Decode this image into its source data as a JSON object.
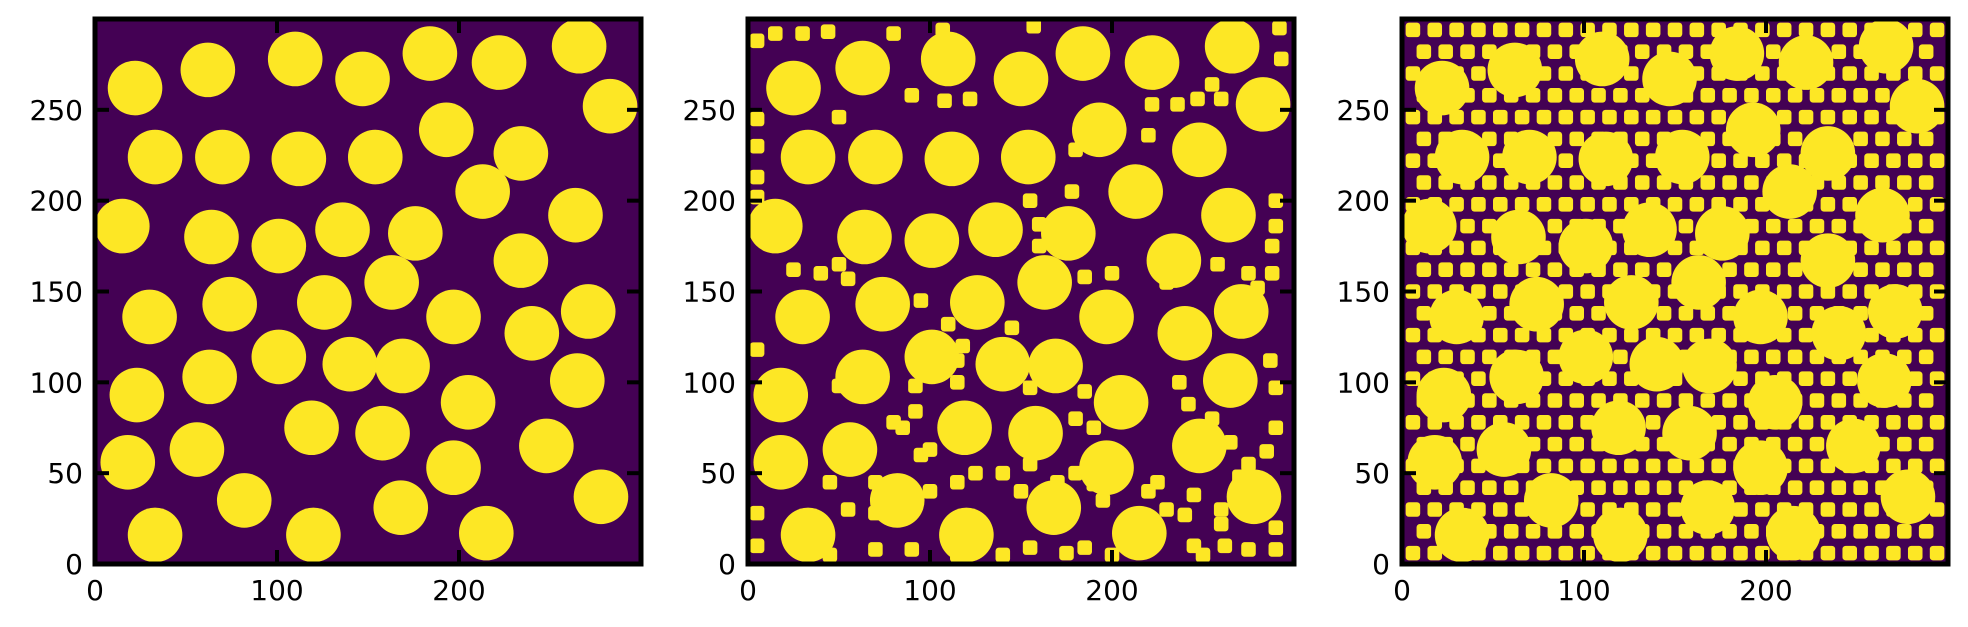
{
  "colors": {
    "background": "#440154",
    "particle": "#fde725",
    "frame": "#000000"
  },
  "chart_data": [
    {
      "type": "heatmap",
      "title": "",
      "xlabel": "",
      "ylabel": "",
      "xlim": [
        0,
        300
      ],
      "ylim": [
        0,
        300
      ],
      "xticks": [
        "0",
        "100",
        "200"
      ],
      "yticks": [
        "0",
        "50",
        "100",
        "150",
        "200",
        "250"
      ],
      "grid": false,
      "large_particles": [
        [
          22,
          262
        ],
        [
          62,
          272
        ],
        [
          110,
          278
        ],
        [
          147,
          267
        ],
        [
          184,
          281
        ],
        [
          222,
          276
        ],
        [
          266,
          285
        ],
        [
          283,
          252
        ],
        [
          33,
          224
        ],
        [
          70,
          224
        ],
        [
          112,
          223
        ],
        [
          154,
          224
        ],
        [
          193,
          239
        ],
        [
          234,
          226
        ],
        [
          15,
          186
        ],
        [
          64,
          180
        ],
        [
          101,
          175
        ],
        [
          136,
          184
        ],
        [
          176,
          182
        ],
        [
          213,
          205
        ],
        [
          264,
          192
        ],
        [
          234,
          167
        ],
        [
          30,
          136
        ],
        [
          74,
          143
        ],
        [
          126,
          144
        ],
        [
          163,
          155
        ],
        [
          197,
          136
        ],
        [
          240,
          127
        ],
        [
          271,
          139
        ],
        [
          23,
          93
        ],
        [
          63,
          103
        ],
        [
          101,
          114
        ],
        [
          140,
          110
        ],
        [
          169,
          109
        ],
        [
          205,
          89
        ],
        [
          265,
          101
        ],
        [
          119,
          75
        ],
        [
          158,
          72
        ],
        [
          197,
          53
        ],
        [
          248,
          65
        ],
        [
          18,
          56
        ],
        [
          56,
          63
        ],
        [
          82,
          35
        ],
        [
          33,
          16
        ],
        [
          120,
          16
        ],
        [
          168,
          31
        ],
        [
          215,
          17
        ],
        [
          278,
          37
        ]
      ],
      "large_radius": 15
    },
    {
      "type": "heatmap",
      "title": "",
      "xlabel": "",
      "ylabel": "",
      "xlim": [
        0,
        300
      ],
      "ylim": [
        0,
        300
      ],
      "xticks": [
        "0",
        "100",
        "200"
      ],
      "yticks": [
        "0",
        "50",
        "100",
        "150",
        "200",
        "250"
      ],
      "grid": false,
      "large_particles": [
        [
          25,
          262
        ],
        [
          63,
          273
        ],
        [
          110,
          278
        ],
        [
          150,
          267
        ],
        [
          184,
          281
        ],
        [
          222,
          276
        ],
        [
          266,
          285
        ],
        [
          283,
          253
        ],
        [
          33,
          224
        ],
        [
          70,
          224
        ],
        [
          112,
          223
        ],
        [
          154,
          224
        ],
        [
          193,
          239
        ],
        [
          248,
          228
        ],
        [
          15,
          186
        ],
        [
          64,
          180
        ],
        [
          101,
          178
        ],
        [
          136,
          184
        ],
        [
          176,
          182
        ],
        [
          213,
          205
        ],
        [
          264,
          192
        ],
        [
          234,
          167
        ],
        [
          30,
          136
        ],
        [
          74,
          143
        ],
        [
          126,
          144
        ],
        [
          163,
          155
        ],
        [
          197,
          136
        ],
        [
          240,
          127
        ],
        [
          271,
          139
        ],
        [
          18,
          93
        ],
        [
          63,
          103
        ],
        [
          101,
          114
        ],
        [
          140,
          110
        ],
        [
          169,
          109
        ],
        [
          205,
          89
        ],
        [
          265,
          101
        ],
        [
          119,
          75
        ],
        [
          158,
          72
        ],
        [
          197,
          53
        ],
        [
          248,
          65
        ],
        [
          18,
          56
        ],
        [
          56,
          63
        ],
        [
          82,
          35
        ],
        [
          33,
          16
        ],
        [
          120,
          16
        ],
        [
          168,
          31
        ],
        [
          215,
          17
        ],
        [
          278,
          37
        ]
      ],
      "large_radius": 15,
      "small_particles": [
        [
          5,
          288
        ],
        [
          15,
          292
        ],
        [
          30,
          292
        ],
        [
          44,
          293
        ],
        [
          80,
          292
        ],
        [
          107,
          294
        ],
        [
          157,
          296
        ],
        [
          292,
          295
        ],
        [
          293,
          278
        ],
        [
          90,
          258
        ],
        [
          108,
          255
        ],
        [
          122,
          256
        ],
        [
          50,
          246
        ],
        [
          5,
          245
        ],
        [
          5,
          230
        ],
        [
          222,
          253
        ],
        [
          236,
          253
        ],
        [
          247,
          256
        ],
        [
          260,
          256
        ],
        [
          255,
          264
        ],
        [
          180,
          228
        ],
        [
          220,
          236
        ],
        [
          5,
          213
        ],
        [
          5,
          202
        ],
        [
          155,
          200
        ],
        [
          160,
          187
        ],
        [
          178,
          205
        ],
        [
          290,
          200
        ],
        [
          290,
          186
        ],
        [
          288,
          175
        ],
        [
          288,
          160
        ],
        [
          280,
          152
        ],
        [
          258,
          165
        ],
        [
          275,
          160
        ],
        [
          40,
          160
        ],
        [
          25,
          162
        ],
        [
          50,
          165
        ],
        [
          55,
          157
        ],
        [
          230,
          155
        ],
        [
          185,
          158
        ],
        [
          160,
          175
        ],
        [
          200,
          160
        ],
        [
          95,
          145
        ],
        [
          110,
          132
        ],
        [
          145,
          130
        ],
        [
          118,
          120
        ],
        [
          5,
          118
        ],
        [
          115,
          112
        ],
        [
          142,
          118
        ],
        [
          55,
          108
        ],
        [
          50,
          98
        ],
        [
          92,
          98
        ],
        [
          115,
          100
        ],
        [
          287,
          112
        ],
        [
          290,
          97
        ],
        [
          155,
          97
        ],
        [
          185,
          95
        ],
        [
          180,
          80
        ],
        [
          190,
          75
        ],
        [
          237,
          100
        ],
        [
          242,
          88
        ],
        [
          255,
          80
        ],
        [
          265,
          67
        ],
        [
          290,
          75
        ],
        [
          285,
          62
        ],
        [
          275,
          55
        ],
        [
          270,
          48
        ],
        [
          80,
          78
        ],
        [
          92,
          84
        ],
        [
          95,
          60
        ],
        [
          85,
          75
        ],
        [
          100,
          63
        ],
        [
          115,
          45
        ],
        [
          125,
          50
        ],
        [
          140,
          50
        ],
        [
          150,
          40
        ],
        [
          155,
          55
        ],
        [
          170,
          45
        ],
        [
          180,
          50
        ],
        [
          190,
          44
        ],
        [
          195,
          35
        ],
        [
          220,
          40
        ],
        [
          225,
          45
        ],
        [
          5,
          28
        ],
        [
          45,
          45
        ],
        [
          55,
          30
        ],
        [
          70,
          28
        ],
        [
          70,
          45
        ],
        [
          100,
          40
        ],
        [
          230,
          30
        ],
        [
          240,
          27
        ],
        [
          245,
          38
        ],
        [
          260,
          30
        ],
        [
          260,
          22
        ],
        [
          290,
          20
        ],
        [
          5,
          10
        ],
        [
          40,
          10
        ],
        [
          45,
          5
        ],
        [
          70,
          8
        ],
        [
          90,
          8
        ],
        [
          115,
          5
        ],
        [
          140,
          5
        ],
        [
          155,
          9
        ],
        [
          175,
          6
        ],
        [
          185,
          9
        ],
        [
          200,
          5
        ],
        [
          245,
          10
        ],
        [
          250,
          5
        ],
        [
          262,
          10
        ],
        [
          275,
          8
        ],
        [
          290,
          8
        ]
      ],
      "small_radius": 4
    },
    {
      "type": "heatmap",
      "title": "",
      "xlabel": "",
      "ylabel": "",
      "xlim": [
        0,
        300
      ],
      "ylim": [
        0,
        300
      ],
      "xticks": [
        "0",
        "100",
        "200"
      ],
      "yticks": [
        "0",
        "50",
        "100",
        "150",
        "200",
        "250"
      ],
      "grid": false,
      "large_particles": [
        [
          22,
          262
        ],
        [
          62,
          272
        ],
        [
          110,
          278
        ],
        [
          147,
          267
        ],
        [
          184,
          281
        ],
        [
          222,
          276
        ],
        [
          266,
          285
        ],
        [
          283,
          252
        ],
        [
          33,
          224
        ],
        [
          70,
          224
        ],
        [
          112,
          223
        ],
        [
          154,
          224
        ],
        [
          193,
          239
        ],
        [
          234,
          226
        ],
        [
          15,
          186
        ],
        [
          64,
          180
        ],
        [
          101,
          175
        ],
        [
          136,
          184
        ],
        [
          176,
          182
        ],
        [
          213,
          205
        ],
        [
          264,
          192
        ],
        [
          234,
          167
        ],
        [
          30,
          136
        ],
        [
          74,
          143
        ],
        [
          126,
          144
        ],
        [
          163,
          155
        ],
        [
          197,
          136
        ],
        [
          240,
          127
        ],
        [
          271,
          139
        ],
        [
          23,
          93
        ],
        [
          63,
          103
        ],
        [
          101,
          114
        ],
        [
          140,
          110
        ],
        [
          169,
          109
        ],
        [
          205,
          89
        ],
        [
          265,
          101
        ],
        [
          119,
          75
        ],
        [
          158,
          72
        ],
        [
          197,
          53
        ],
        [
          248,
          65
        ],
        [
          18,
          56
        ],
        [
          56,
          63
        ],
        [
          82,
          35
        ],
        [
          33,
          16
        ],
        [
          120,
          16
        ],
        [
          168,
          31
        ],
        [
          215,
          17
        ],
        [
          278,
          37
        ]
      ],
      "large_radius": 15,
      "small_particle_spacing": 12,
      "small_radius": 4
    }
  ]
}
